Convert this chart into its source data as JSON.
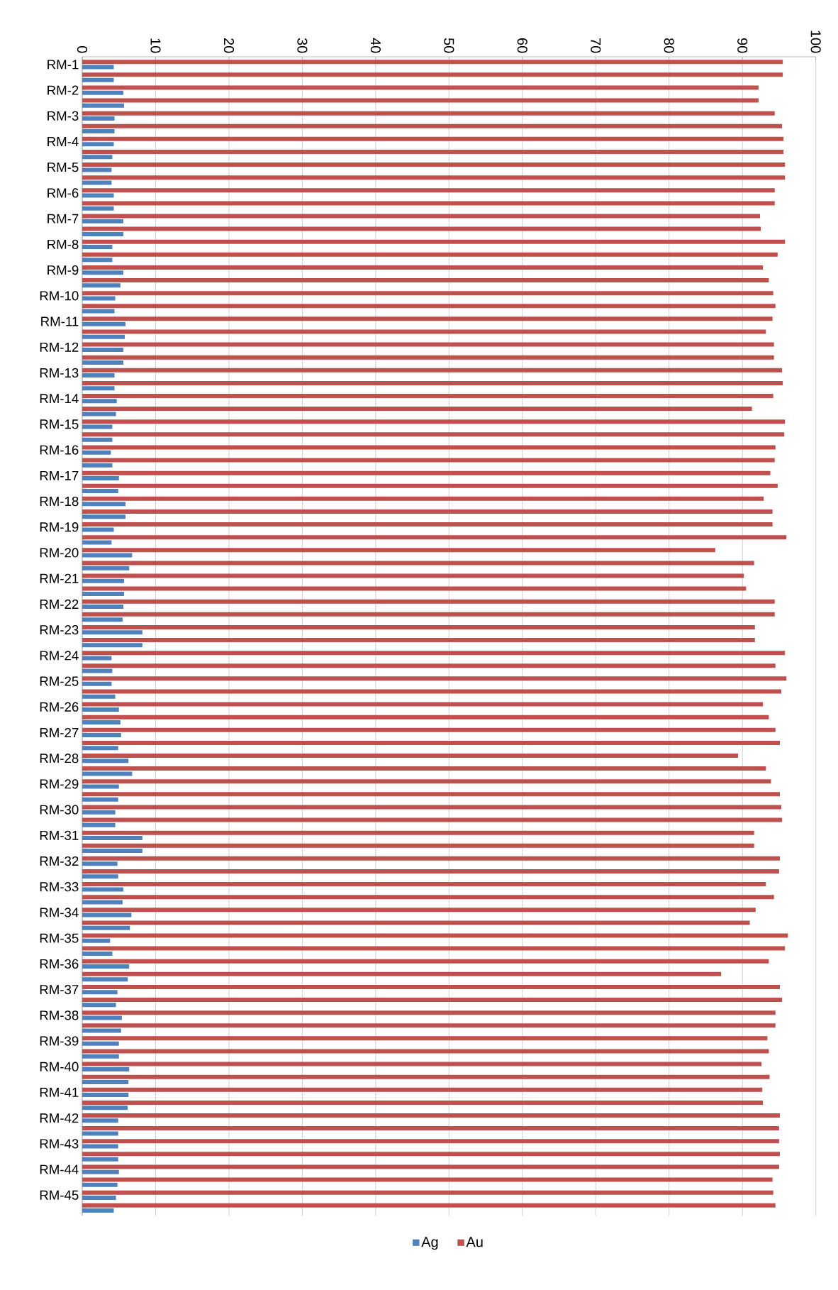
{
  "chart_data": {
    "type": "bar",
    "orientation": "horizontal",
    "categories": [
      "RM-1",
      null,
      "RM-2",
      null,
      "RM-3",
      null,
      "RM-4",
      null,
      "RM-5",
      null,
      "RM-6",
      null,
      "RM-7",
      null,
      "RM-8",
      null,
      "RM-9",
      null,
      "RM-10",
      null,
      "RM-11",
      null,
      "RM-12",
      null,
      "RM-13",
      null,
      "RM-14",
      null,
      "RM-15",
      null,
      "RM-16",
      null,
      "RM-17",
      null,
      "RM-18",
      null,
      "RM-19",
      null,
      "RM-20",
      null,
      "RM-21",
      null,
      "RM-22",
      null,
      "RM-23",
      null,
      "RM-24",
      null,
      "RM-25",
      null,
      "RM-26",
      null,
      "RM-27",
      null,
      "RM-28",
      null,
      "RM-29",
      null,
      "RM-30",
      null,
      "RM-31",
      null,
      "RM-32",
      null,
      "RM-33",
      null,
      "RM-34",
      null,
      "RM-35",
      null,
      "RM-36",
      null,
      "RM-37",
      null,
      "RM-38",
      null,
      "RM-39",
      null,
      "RM-40",
      null,
      "RM-41",
      null,
      "RM-42",
      null,
      "RM-43",
      null,
      "RM-44",
      null,
      "RM-45",
      null
    ],
    "series": [
      {
        "name": "Ag",
        "color": "#4f81bd",
        "values": [
          4.3,
          4.3,
          5.6,
          5.7,
          4.4,
          4.4,
          4.3,
          4.1,
          4.0,
          4.0,
          4.3,
          4.3,
          5.6,
          5.6,
          4.1,
          4.1,
          5.6,
          5.2,
          4.5,
          4.4,
          5.9,
          5.8,
          5.6,
          5.6,
          4.4,
          4.4,
          4.7,
          4.6,
          4.1,
          4.1,
          3.9,
          4.1,
          5.0,
          4.9,
          5.9,
          5.9,
          4.3,
          4.0,
          6.8,
          6.4,
          5.7,
          5.7,
          5.6,
          5.5,
          8.2,
          8.2,
          4.0,
          4.1,
          4.0,
          4.5,
          5.0,
          5.2,
          5.3,
          4.9,
          6.3,
          6.8,
          5.0,
          4.9,
          4.5,
          4.5,
          8.2,
          8.2,
          4.8,
          4.9,
          5.6,
          5.5,
          6.7,
          6.5,
          3.8,
          4.1,
          6.4,
          6.2,
          4.8,
          4.6,
          5.4,
          5.3,
          5.0,
          5.0,
          6.4,
          6.3,
          6.3,
          6.2,
          4.9,
          4.9,
          4.9,
          4.9,
          5.0,
          4.8,
          4.6,
          4.3
        ]
      },
      {
        "name": "Au",
        "color": "#c0504d",
        "values": [
          95.5,
          95.5,
          92.2,
          92.2,
          94.4,
          95.4,
          95.6,
          95.6,
          95.8,
          95.8,
          94.4,
          94.4,
          92.4,
          92.5,
          95.8,
          94.8,
          92.8,
          93.6,
          94.2,
          94.5,
          94.1,
          93.2,
          94.3,
          94.3,
          95.4,
          95.5,
          94.2,
          91.3,
          95.8,
          95.7,
          94.5,
          94.4,
          93.8,
          94.8,
          92.9,
          94.1,
          94.1,
          96.0,
          86.3,
          91.6,
          90.2,
          90.5,
          94.4,
          94.4,
          91.7,
          91.7,
          95.8,
          94.5,
          96.0,
          95.3,
          92.8,
          93.6,
          94.5,
          95.1,
          89.4,
          93.2,
          93.9,
          95.1,
          95.3,
          95.4,
          91.6,
          91.6,
          95.1,
          95.0,
          93.2,
          94.3,
          91.8,
          91.0,
          96.2,
          95.8,
          93.6,
          87.1,
          95.1,
          95.4,
          94.5,
          94.5,
          93.4,
          93.6,
          92.6,
          93.7,
          92.7,
          92.8,
          95.1,
          95.0,
          95.0,
          95.1,
          95.0,
          94.1,
          94.2,
          94.5
        ]
      }
    ],
    "xlim": [
      0,
      100
    ],
    "xticks": [
      0,
      10,
      20,
      30,
      40,
      50,
      60,
      70,
      80,
      90,
      100
    ],
    "grid": "x",
    "legend": "bottom"
  }
}
